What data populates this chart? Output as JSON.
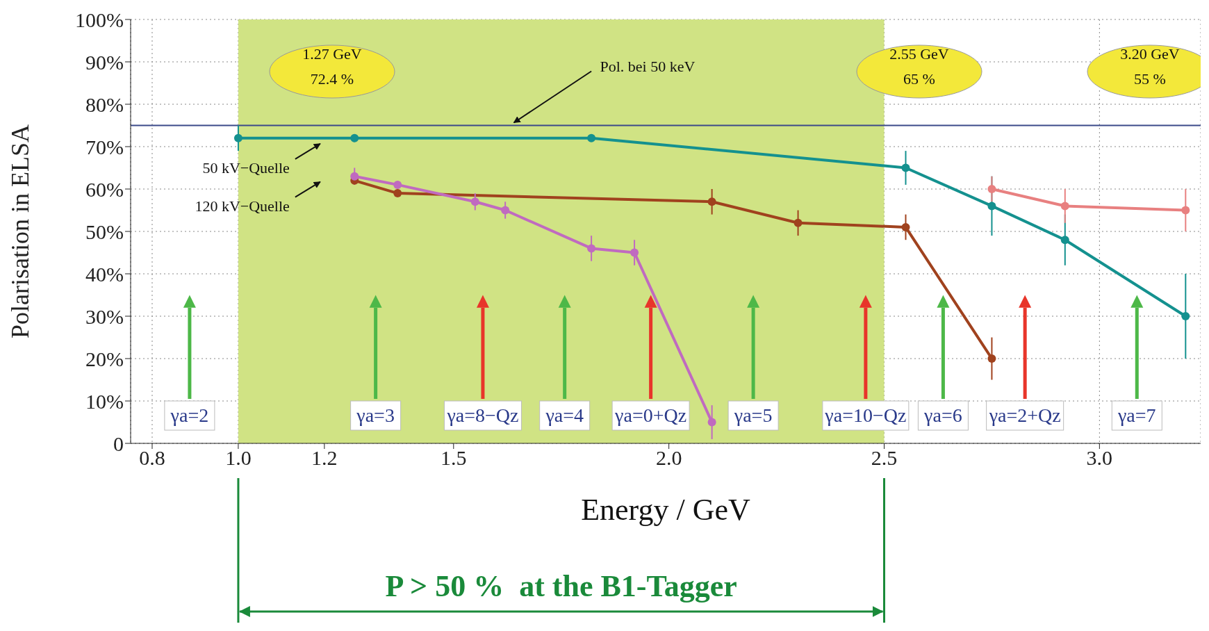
{
  "chart_data": {
    "type": "line",
    "xlabel": "Energy / GeV",
    "ylabel": "Polarisation in ELSA",
    "xlim": [
      0.75,
      3.235
    ],
    "xticks": [
      0.8,
      {
        "value": 1,
        "label": "1.0"
      },
      1.2,
      1.5,
      {
        "value": 2,
        "label": "2.0"
      },
      2.5,
      {
        "value": 3,
        "label": "3.0"
      }
    ],
    "ylim": [
      0,
      100
    ],
    "yticks": [
      {
        "value": 0,
        "label": "0"
      },
      {
        "value": 10,
        "label": "10%"
      },
      {
        "value": 20,
        "label": "20%"
      },
      {
        "value": 30,
        "label": "30%"
      },
      {
        "value": 40,
        "label": "40%"
      },
      {
        "value": 50,
        "label": "50%"
      },
      {
        "value": 60,
        "label": "60%"
      },
      {
        "value": 70,
        "label": "70%"
      },
      {
        "value": 80,
        "label": "80%"
      },
      {
        "value": 90,
        "label": "90%"
      },
      {
        "value": 100,
        "label": "100%"
      }
    ],
    "grid": true,
    "marker": "circle",
    "series": [
      {
        "color": "#14918f",
        "x": [
          1.0,
          1.27,
          1.82,
          2.55,
          2.75,
          2.92,
          3.2
        ],
        "values": [
          72,
          72,
          72,
          65,
          56,
          48,
          30
        ],
        "errors": [
          3,
          null,
          null,
          4,
          7,
          6,
          10
        ]
      },
      {
        "color": "#a0421e",
        "x": [
          1.27,
          1.37,
          2.1,
          2.3,
          2.55,
          2.75
        ],
        "values": [
          62,
          59,
          57,
          52,
          51,
          20
        ],
        "errors": [
          null,
          null,
          3,
          3,
          3,
          5
        ]
      },
      {
        "color": "#c06ac0",
        "x": [
          1.27,
          1.37,
          1.55,
          1.62,
          1.82,
          1.92,
          2.1
        ],
        "values": [
          63,
          61,
          57,
          55,
          46,
          45,
          5
        ],
        "errors": [
          2,
          null,
          2,
          2,
          3,
          3,
          4
        ]
      },
      {
        "color": "#e88080",
        "x": [
          2.75,
          2.92,
          3.2
        ],
        "values": [
          60,
          56,
          55
        ],
        "errors": [
          3,
          4,
          5
        ]
      }
    ],
    "ref_lines": [
      {
        "axis": "y",
        "value": 75,
        "label": "Pol. bei 50 keV",
        "color": "#3b4a8a"
      }
    ],
    "bands": [
      {
        "axis": "x",
        "from": 1.0,
        "to": 2.5,
        "color": "#d0e384"
      }
    ],
    "annotations": [
      "1.27 GeV\n72.4 %",
      "2.55 GeV\n65 %",
      "3.20 GeV\n55 %",
      "50 kV−Quelle",
      "120 kV−Quelle",
      "P > 50 %  at the B1-Tagger",
      "γa=2",
      "γa=3",
      "γa=8−Qz",
      "γa=4",
      "γa=0+Qz",
      "γa=5",
      "γa=10−Qz",
      "γa=6",
      "γa=2+Qz",
      "γa=7"
    ]
  }
}
